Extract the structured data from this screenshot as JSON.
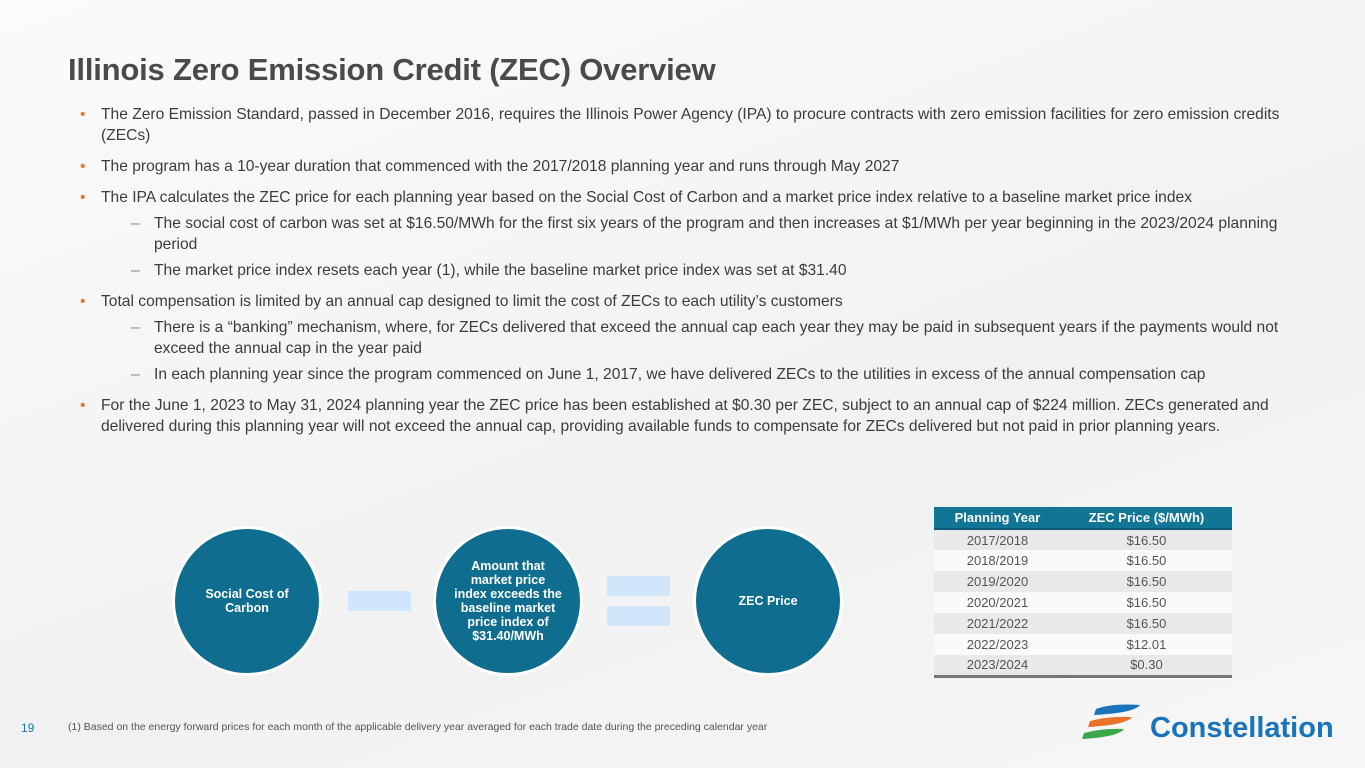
{
  "title": "Illinois Zero Emission Credit (ZEC) Overview",
  "bullets": [
    {
      "text": "The Zero Emission Standard, passed in December 2016, requires the Illinois Power Agency (IPA) to procure contracts with zero emission facilities for zero emission credits (ZECs)",
      "subs": []
    },
    {
      "text": "The program has a 10-year duration that commenced with the 2017/2018 planning year and runs through May 2027",
      "subs": []
    },
    {
      "text": "The IPA calculates the ZEC price for each planning year based on the Social Cost of Carbon and a market price index relative to a baseline market price index",
      "subs": [
        "The social cost of carbon was set at $16.50/MWh for the first six years of the program and then increases at $1/MWh per year beginning in the 2023/2024 planning period",
        "The market price index resets each year (1), while the baseline market price index was set at $31.40"
      ]
    },
    {
      "text": "Total compensation is limited by an annual cap designed to limit the cost of ZECs to each utility’s customers",
      "subs": [
        "There is a “banking” mechanism, where, for ZECs delivered that exceed the annual cap each year they may be paid in subsequent years if the payments would not exceed the annual cap in the year paid",
        "In each planning year since the program commenced on June 1, 2017, we have delivered ZECs to the utilities in excess of the annual compensation cap"
      ]
    },
    {
      "text": "For the June 1, 2023 to May 31, 2024 planning year the ZEC price has been established at $0.30 per ZEC, subject to an annual cap of $224 million. ZECs generated and delivered during this planning year will not exceed the annual cap, providing available funds to compensate for ZECs delivered but not paid in prior planning years.",
      "subs": []
    }
  ],
  "formula": {
    "term1": "Social Cost of Carbon",
    "operator1": "minus",
    "term2": "Amount that market price index exceeds the baseline market price index of $31.40/MWh",
    "operator2": "equals",
    "result": "ZEC Price"
  },
  "table": {
    "headers": [
      "Planning Year",
      "ZEC Price ($/MWh)"
    ],
    "rows": [
      [
        "2017/2018",
        "$16.50"
      ],
      [
        "2018/2019",
        "$16.50"
      ],
      [
        "2019/2020",
        "$16.50"
      ],
      [
        "2020/2021",
        "$16.50"
      ],
      [
        "2021/2022",
        "$16.50"
      ],
      [
        "2022/2023",
        "$12.01"
      ],
      [
        "2023/2024",
        "$0.30"
      ]
    ]
  },
  "footer": {
    "page": "19",
    "footnote": "(1)   Based on the energy forward prices for each month of the applicable delivery year averaged for each trade date during the preceding calendar year",
    "logo": "Constellation"
  }
}
